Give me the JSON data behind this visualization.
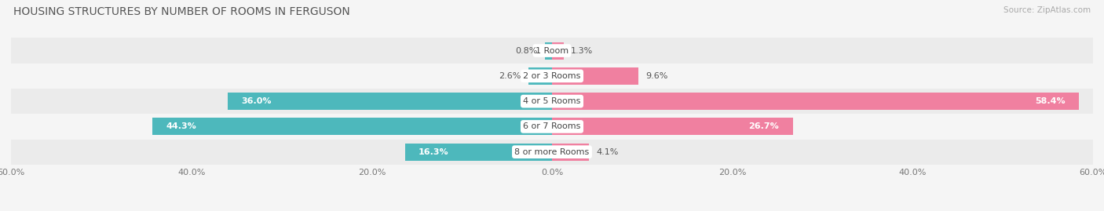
{
  "title": "HOUSING STRUCTURES BY NUMBER OF ROOMS IN FERGUSON",
  "source": "Source: ZipAtlas.com",
  "categories": [
    "1 Room",
    "2 or 3 Rooms",
    "4 or 5 Rooms",
    "6 or 7 Rooms",
    "8 or more Rooms"
  ],
  "owner_values": [
    0.8,
    2.6,
    36.0,
    44.3,
    16.3
  ],
  "renter_values": [
    1.3,
    9.6,
    58.4,
    26.7,
    4.1
  ],
  "owner_color": "#4db8bc",
  "renter_color": "#f080a0",
  "axis_max": 60.0,
  "row_colors": [
    "#ebebeb",
    "#f5f5f5",
    "#ebebeb",
    "#f5f5f5",
    "#ebebeb"
  ],
  "background_color": "#f5f5f5",
  "bar_height": 0.68,
  "title_fontsize": 10,
  "label_fontsize": 8,
  "category_fontsize": 8,
  "axis_label_fontsize": 8,
  "source_fontsize": 7.5
}
